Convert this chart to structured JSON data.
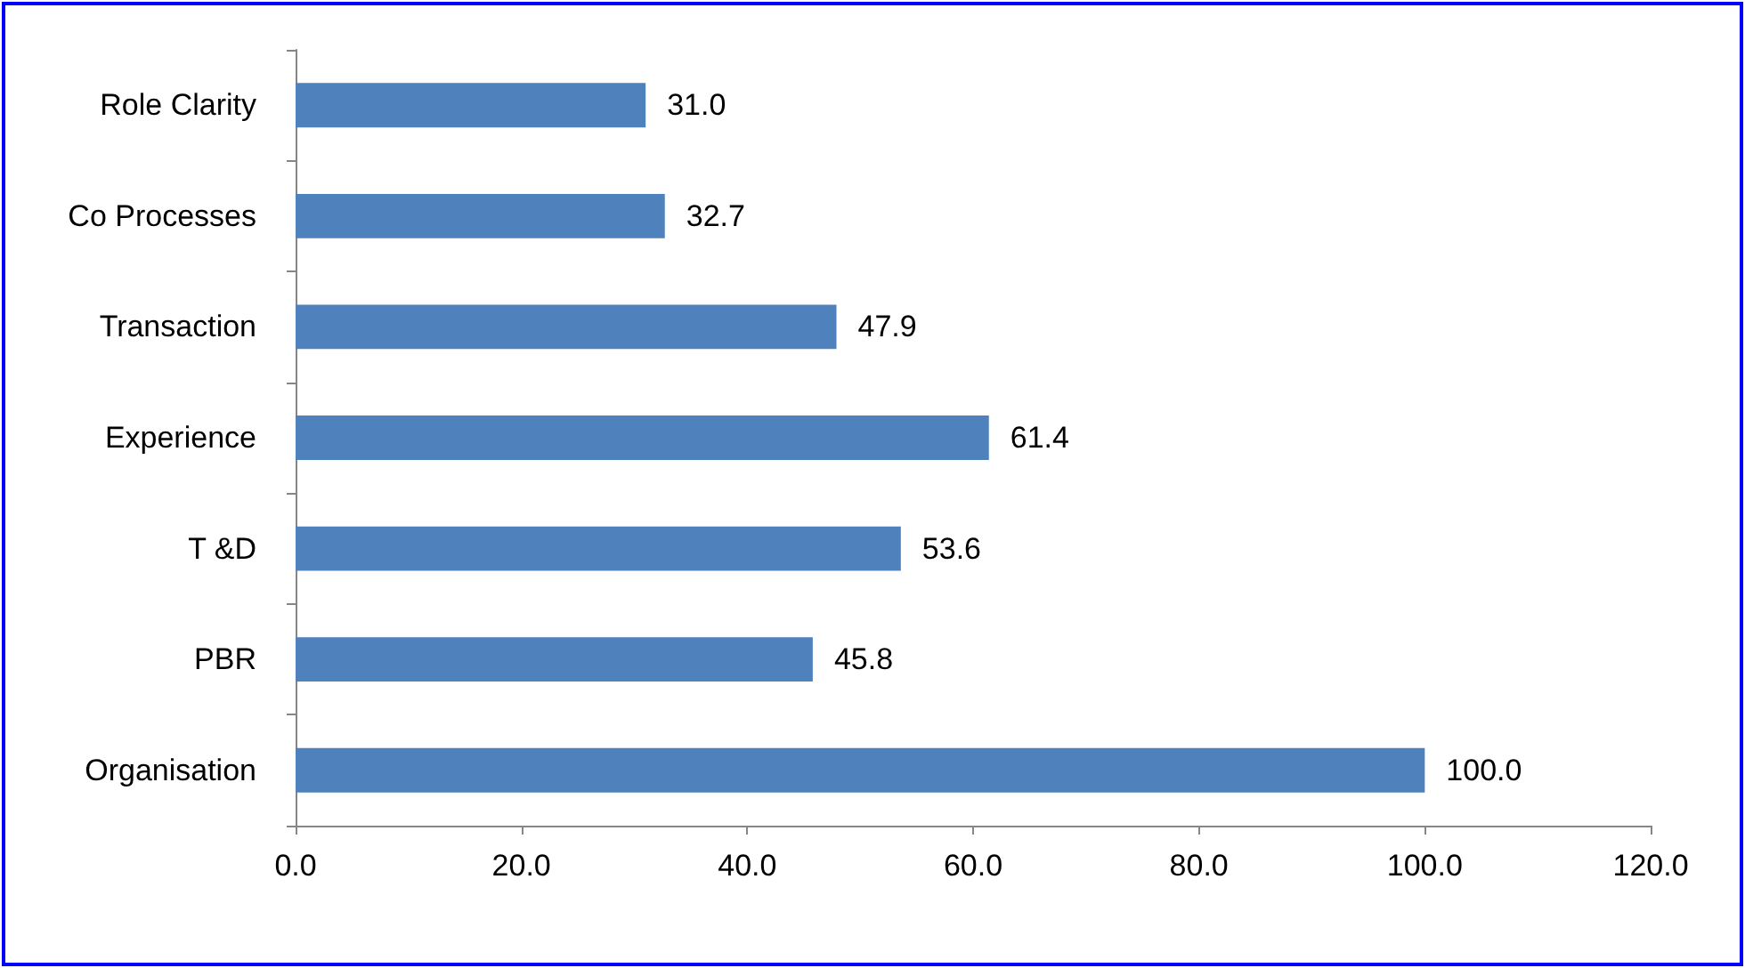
{
  "chart_data": {
    "type": "bar",
    "orientation": "horizontal",
    "categories": [
      "Role Clarity",
      "Co Processes",
      "Transaction",
      "Experience",
      "T &D",
      "PBR",
      "Organisation"
    ],
    "values": [
      31.0,
      32.7,
      47.9,
      61.4,
      53.6,
      45.8,
      100.0
    ],
    "value_labels": [
      "31.0",
      "32.7",
      "47.9",
      "61.4",
      "53.6",
      "45.8",
      "100.0"
    ],
    "color": "#4f81bd",
    "xlim": [
      0,
      120
    ],
    "xticks": [
      {
        "value": 0,
        "label": "0.0"
      },
      {
        "value": 20,
        "label": "20.0"
      },
      {
        "value": 40,
        "label": "40.0"
      },
      {
        "value": 60,
        "label": "60.0"
      },
      {
        "value": 80,
        "label": "80.0"
      },
      {
        "value": 100,
        "label": "100.0"
      },
      {
        "value": 120,
        "label": "120.0"
      }
    ],
    "grid": false
  }
}
